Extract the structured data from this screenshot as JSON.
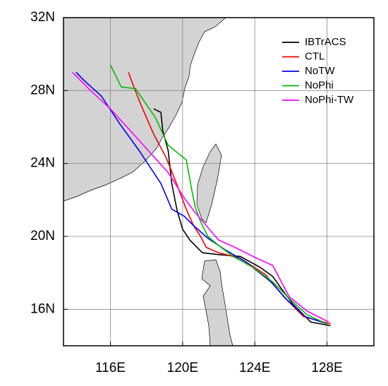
{
  "chart_data": {
    "type": "line",
    "xlim": [
      113.4,
      130.6
    ],
    "ylim": [
      14,
      32
    ],
    "xticks": [
      {
        "value": 116,
        "label": "116E"
      },
      {
        "value": 120,
        "label": "120E"
      },
      {
        "value": 124,
        "label": "124E"
      },
      {
        "value": 128,
        "label": "128E"
      }
    ],
    "yticks": [
      {
        "value": 16,
        "label": "16N"
      },
      {
        "value": 20,
        "label": "20N"
      },
      {
        "value": 24,
        "label": "24N"
      },
      {
        "value": 28,
        "label": "28N"
      },
      {
        "value": 32,
        "label": "32N"
      }
    ],
    "grid": true,
    "legend": "upper right",
    "series": [
      {
        "name": "IBTrACS",
        "color": "#000000",
        "x": [
          128.2,
          127.1,
          126.1,
          125.5,
          125.0,
          124.3,
          123.2,
          122.0,
          121.1,
          120.4,
          120.0,
          119.7,
          119.6,
          119.4,
          119.2,
          118.9,
          118.8,
          118.4
        ],
        "values": [
          15.1,
          15.3,
          16.3,
          17.1,
          17.8,
          18.3,
          18.9,
          19.0,
          19.1,
          19.8,
          20.4,
          21.4,
          21.9,
          22.9,
          24.7,
          25.8,
          26.8,
          27.0
        ]
      },
      {
        "name": "CTL",
        "color": "#ee0000",
        "x": [
          128.2,
          126.7,
          125.6,
          124.6,
          123.2,
          122.0,
          121.3,
          121.0,
          120.6,
          120.2,
          119.7,
          119.1,
          118.4,
          117.7,
          117.3,
          117.0
        ],
        "values": [
          15.2,
          15.6,
          16.7,
          17.9,
          18.8,
          19.1,
          19.4,
          20.0,
          20.6,
          21.5,
          22.8,
          24.3,
          25.6,
          27.2,
          28.2,
          29.0
        ]
      },
      {
        "name": "NoTW",
        "color": "#0000ee",
        "x": [
          128.0,
          126.8,
          125.8,
          124.9,
          123.5,
          122.3,
          121.4,
          120.6,
          120.1,
          119.4,
          118.8,
          117.6,
          116.5,
          115.5,
          114.6,
          114.1
        ],
        "values": [
          15.2,
          15.6,
          16.5,
          17.5,
          18.6,
          19.3,
          19.9,
          20.6,
          21.1,
          21.5,
          22.9,
          24.7,
          26.2,
          27.7,
          28.5,
          29.0
        ]
      },
      {
        "name": "NoPhi",
        "color": "#00bb00",
        "x": [
          128.0,
          126.9,
          125.9,
          125.0,
          123.9,
          122.8,
          122.0,
          121.4,
          121.0,
          120.7,
          120.5,
          120.2,
          119.2,
          118.5,
          117.4,
          116.6,
          116.0
        ],
        "values": [
          15.2,
          15.7,
          16.6,
          17.5,
          18.3,
          18.9,
          19.5,
          20.0,
          20.8,
          21.6,
          22.6,
          24.2,
          25.0,
          26.5,
          28.1,
          28.2,
          29.4
        ]
      },
      {
        "name": "NoPhi-TW",
        "color": "#ff00ff",
        "x": [
          128.1,
          126.9,
          125.9,
          125.0,
          123.9,
          122.9,
          122.0,
          121.3,
          120.7,
          120.1,
          119.2,
          118.2,
          117.1,
          116.0,
          114.9,
          113.9
        ],
        "values": [
          15.3,
          15.9,
          16.7,
          18.4,
          18.9,
          19.4,
          19.8,
          20.6,
          21.3,
          22.1,
          23.5,
          24.6,
          25.8,
          27.0,
          28.0,
          29.0
        ]
      }
    ]
  }
}
